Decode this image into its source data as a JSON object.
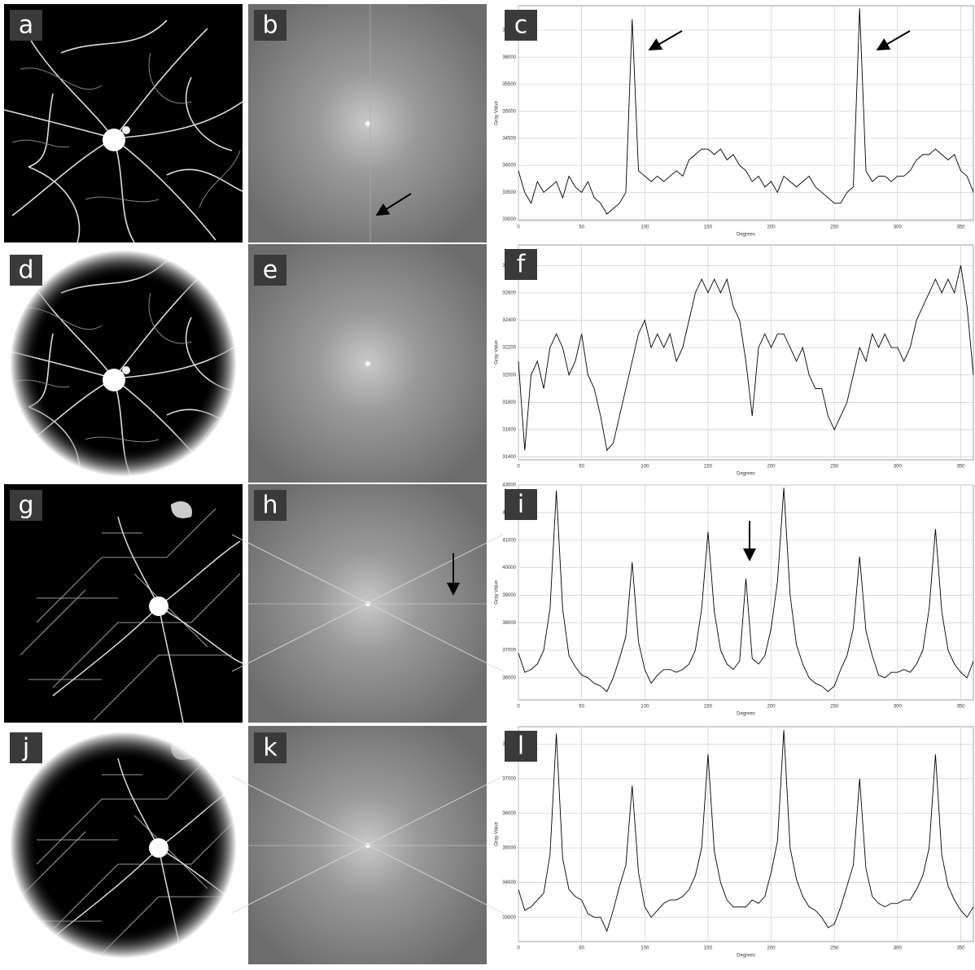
{
  "image_panels": [
    "a",
    "b",
    "d",
    "e",
    "g",
    "h",
    "j",
    "k"
  ],
  "chart_data": [
    {
      "type": "line",
      "panel_label": "c",
      "x_label": "Degrees",
      "y_label": "Gray Value",
      "color": "#000000",
      "grid": true,
      "xlim": [
        0,
        360
      ],
      "xticks": [
        0,
        50,
        100,
        150,
        200,
        250,
        300,
        350
      ],
      "ylim": [
        32980,
        36950
      ],
      "yticks": [
        33000,
        33500,
        34000,
        34500,
        35000,
        35500,
        36000,
        36500
      ],
      "x": [
        0,
        5,
        10,
        15,
        20,
        25,
        30,
        35,
        40,
        45,
        50,
        55,
        60,
        65,
        70,
        75,
        80,
        85,
        90,
        95,
        100,
        105,
        110,
        115,
        120,
        125,
        130,
        135,
        140,
        145,
        150,
        155,
        160,
        165,
        170,
        175,
        180,
        185,
        190,
        195,
        200,
        205,
        210,
        215,
        220,
        225,
        230,
        235,
        240,
        245,
        250,
        255,
        260,
        265,
        270,
        275,
        280,
        285,
        290,
        295,
        300,
        305,
        310,
        315,
        320,
        325,
        330,
        335,
        340,
        345,
        350,
        355,
        360
      ],
      "values": [
        33900,
        33500,
        33300,
        33700,
        33500,
        33600,
        33700,
        33400,
        33800,
        33600,
        33500,
        33700,
        33400,
        33300,
        33100,
        33200,
        33300,
        33500,
        36700,
        33900,
        33800,
        33700,
        33800,
        33700,
        33800,
        33900,
        33800,
        34100,
        34200,
        34300,
        34300,
        34200,
        34300,
        34100,
        34200,
        34000,
        33900,
        33700,
        33800,
        33600,
        33700,
        33500,
        33800,
        33700,
        33600,
        33700,
        33800,
        33600,
        33500,
        33400,
        33300,
        33300,
        33500,
        33600,
        36900,
        33900,
        33700,
        33800,
        33800,
        33700,
        33800,
        33800,
        33900,
        34100,
        34200,
        34200,
        34300,
        34200,
        34100,
        34200,
        33900,
        33800,
        33500
      ]
    },
    {
      "type": "line",
      "panel_label": "f",
      "x_label": "Degrees",
      "y_label": "Gray Value",
      "color": "#000000",
      "grid": true,
      "xlim": [
        0,
        360
      ],
      "xticks": [
        0,
        50,
        100,
        150,
        200,
        250,
        300,
        350
      ],
      "ylim": [
        31380,
        32950
      ],
      "yticks": [
        31400,
        31600,
        31800,
        32000,
        32200,
        32400,
        32600,
        32800
      ],
      "x": [
        0,
        5,
        10,
        15,
        20,
        25,
        30,
        35,
        40,
        45,
        50,
        55,
        60,
        65,
        70,
        75,
        80,
        85,
        90,
        95,
        100,
        105,
        110,
        115,
        120,
        125,
        130,
        135,
        140,
        145,
        150,
        155,
        160,
        165,
        170,
        175,
        180,
        185,
        190,
        195,
        200,
        205,
        210,
        215,
        220,
        225,
        230,
        235,
        240,
        245,
        250,
        255,
        260,
        265,
        270,
        275,
        280,
        285,
        290,
        295,
        300,
        305,
        310,
        315,
        320,
        325,
        330,
        335,
        340,
        345,
        350,
        355,
        360
      ],
      "values": [
        32100,
        31450,
        32000,
        32100,
        31900,
        32200,
        32300,
        32200,
        32000,
        32100,
        32300,
        32000,
        31900,
        31700,
        31450,
        31500,
        31700,
        31900,
        32100,
        32300,
        32400,
        32200,
        32300,
        32200,
        32300,
        32100,
        32200,
        32400,
        32600,
        32700,
        32600,
        32700,
        32600,
        32700,
        32500,
        32400,
        32100,
        31700,
        32200,
        32300,
        32200,
        32300,
        32300,
        32200,
        32100,
        32200,
        32000,
        31900,
        31900,
        31700,
        31600,
        31700,
        31800,
        32000,
        32200,
        32100,
        32300,
        32200,
        32300,
        32200,
        32200,
        32100,
        32200,
        32400,
        32500,
        32600,
        32700,
        32600,
        32700,
        32600,
        32800,
        32500,
        32000
      ]
    },
    {
      "type": "line",
      "panel_label": "i",
      "x_label": "Degrees",
      "y_label": "Gray Value",
      "color": "#000000",
      "grid": true,
      "xlim": [
        0,
        360
      ],
      "xticks": [
        0,
        50,
        100,
        150,
        200,
        250,
        300,
        350
      ],
      "ylim": [
        35200,
        43000
      ],
      "yticks": [
        36000,
        37000,
        38000,
        39000,
        40000,
        41000,
        42000,
        43000
      ],
      "x": [
        0,
        5,
        10,
        15,
        20,
        25,
        30,
        35,
        40,
        45,
        50,
        55,
        60,
        65,
        70,
        75,
        80,
        85,
        90,
        95,
        100,
        105,
        110,
        115,
        120,
        125,
        130,
        135,
        140,
        145,
        150,
        155,
        160,
        165,
        170,
        175,
        180,
        185,
        190,
        195,
        200,
        205,
        210,
        215,
        220,
        225,
        230,
        235,
        240,
        245,
        250,
        255,
        260,
        265,
        270,
        275,
        280,
        285,
        290,
        295,
        300,
        305,
        310,
        315,
        320,
        325,
        330,
        335,
        340,
        345,
        350,
        355,
        360
      ],
      "values": [
        36900,
        36200,
        36300,
        36500,
        37000,
        38500,
        42800,
        38500,
        36800,
        36400,
        36100,
        36000,
        35800,
        35700,
        35500,
        36000,
        36700,
        37500,
        40200,
        37300,
        36300,
        35800,
        36100,
        36300,
        36300,
        36200,
        36300,
        36500,
        37000,
        38500,
        41300,
        38400,
        37000,
        36500,
        36300,
        36600,
        39600,
        36700,
        36500,
        36800,
        37800,
        39500,
        42900,
        39000,
        37200,
        36500,
        36000,
        35800,
        35700,
        35500,
        35700,
        36300,
        36800,
        37800,
        40400,
        37700,
        36800,
        36100,
        36000,
        36200,
        36200,
        36300,
        36200,
        36500,
        37000,
        38500,
        41400,
        38400,
        37000,
        36500,
        36200,
        36000,
        36600
      ]
    },
    {
      "type": "line",
      "panel_label": "l",
      "x_label": "Degrees",
      "y_label": "Gray Value",
      "color": "#000000",
      "grid": true,
      "xlim": [
        0,
        360
      ],
      "xticks": [
        0,
        50,
        100,
        150,
        200,
        250,
        300,
        350
      ],
      "ylim": [
        32300,
        38500
      ],
      "yticks": [
        33000,
        34000,
        35000,
        36000,
        37000,
        38000
      ],
      "x": [
        0,
        5,
        10,
        15,
        20,
        25,
        30,
        35,
        40,
        45,
        50,
        55,
        60,
        65,
        70,
        75,
        80,
        85,
        90,
        95,
        100,
        105,
        110,
        115,
        120,
        125,
        130,
        135,
        140,
        145,
        150,
        155,
        160,
        165,
        170,
        175,
        180,
        185,
        190,
        195,
        200,
        205,
        210,
        215,
        220,
        225,
        230,
        235,
        240,
        245,
        250,
        255,
        260,
        265,
        270,
        275,
        280,
        285,
        290,
        295,
        300,
        305,
        310,
        315,
        320,
        325,
        330,
        335,
        340,
        345,
        350,
        355,
        360
      ],
      "values": [
        33800,
        33200,
        33300,
        33500,
        33700,
        34800,
        38300,
        34700,
        33800,
        33600,
        33500,
        33100,
        33000,
        33000,
        32600,
        33200,
        33900,
        34500,
        36800,
        34300,
        33300,
        33000,
        33200,
        33400,
        33500,
        33500,
        33600,
        33800,
        34200,
        35000,
        37700,
        34900,
        34000,
        33500,
        33300,
        33300,
        33300,
        33500,
        33400,
        33600,
        34300,
        35200,
        38400,
        35000,
        34100,
        33600,
        33300,
        33200,
        33000,
        32700,
        32800,
        33300,
        33900,
        34500,
        37000,
        34400,
        33600,
        33400,
        33300,
        33400,
        33400,
        33500,
        33500,
        33800,
        34200,
        35000,
        37700,
        34800,
        33900,
        33500,
        33200,
        33000,
        33300
      ]
    }
  ]
}
